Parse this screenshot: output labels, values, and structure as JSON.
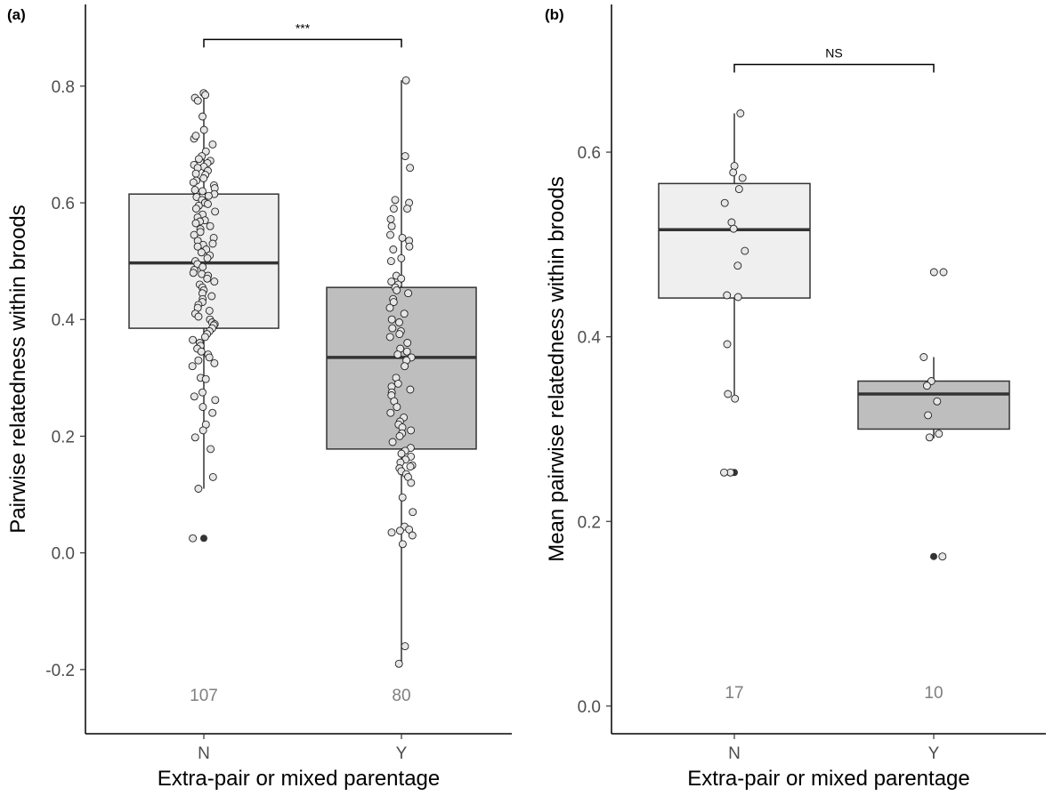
{
  "chart_data": [
    {
      "panel": "(a)",
      "type": "boxplot",
      "xlabel": "Extra-pair or mixed parentage",
      "ylabel": "Pairwise relatedness within broods",
      "categories": [
        "N",
        "Y"
      ],
      "y_ticks": [
        -0.2,
        0.0,
        0.2,
        0.4,
        0.6,
        0.8
      ],
      "y_tick_labels": [
        "-0.2",
        "0.0",
        "0.2",
        "0.4",
        "0.6",
        "0.8"
      ],
      "ylim": [
        -0.31,
        0.94
      ],
      "grid": false,
      "colors": {
        "N": "#efefef",
        "Y": "#bebebe"
      },
      "boxes": [
        {
          "category": "N",
          "whisker_low": 0.11,
          "q1": 0.385,
          "median": 0.497,
          "q3": 0.615,
          "whisker_high": 0.79,
          "outliers": [
            0.025
          ]
        },
        {
          "category": "Y",
          "whisker_low": -0.19,
          "q1": 0.178,
          "median": 0.335,
          "q3": 0.455,
          "whisker_high": 0.81,
          "outliers": []
        }
      ],
      "points": [
        {
          "category": "N",
          "values": [
            0.788,
            0.785,
            0.78,
            0.775,
            0.748,
            0.725,
            0.71,
            0.7,
            0.688,
            0.68,
            0.675,
            0.672,
            0.668,
            0.665,
            0.662,
            0.66,
            0.655,
            0.65,
            0.648,
            0.642,
            0.638,
            0.635,
            0.63,
            0.625,
            0.622,
            0.62,
            0.615,
            0.61,
            0.605,
            0.6,
            0.598,
            0.595,
            0.59,
            0.585,
            0.58,
            0.575,
            0.57,
            0.568,
            0.565,
            0.56,
            0.555,
            0.55,
            0.545,
            0.54,
            0.535,
            0.53,
            0.528,
            0.525,
            0.52,
            0.515,
            0.51,
            0.505,
            0.5,
            0.495,
            0.49,
            0.485,
            0.48,
            0.478,
            0.475,
            0.47,
            0.465,
            0.46,
            0.455,
            0.45,
            0.445,
            0.44,
            0.435,
            0.43,
            0.425,
            0.42,
            0.415,
            0.41,
            0.405,
            0.4,
            0.395,
            0.392,
            0.39,
            0.385,
            0.38,
            0.375,
            0.37,
            0.365,
            0.36,
            0.355,
            0.35,
            0.345,
            0.34,
            0.335,
            0.33,
            0.325,
            0.32,
            0.3,
            0.298,
            0.275,
            0.268,
            0.262,
            0.25,
            0.24,
            0.22,
            0.21,
            0.198,
            0.178,
            0.13,
            0.11,
            0.025,
            0.715,
            0.612
          ]
        },
        {
          "category": "Y",
          "values": [
            0.81,
            0.68,
            0.66,
            0.605,
            0.6,
            0.59,
            0.572,
            0.56,
            0.545,
            0.54,
            0.535,
            0.525,
            0.52,
            0.505,
            0.5,
            0.475,
            0.47,
            0.465,
            0.46,
            0.455,
            0.45,
            0.445,
            0.435,
            0.43,
            0.42,
            0.41,
            0.4,
            0.395,
            0.385,
            0.38,
            0.375,
            0.37,
            0.36,
            0.35,
            0.345,
            0.34,
            0.335,
            0.33,
            0.32,
            0.3,
            0.29,
            0.285,
            0.28,
            0.275,
            0.27,
            0.26,
            0.25,
            0.24,
            0.232,
            0.225,
            0.22,
            0.215,
            0.21,
            0.205,
            0.2,
            0.19,
            0.18,
            0.175,
            0.17,
            0.165,
            0.16,
            0.155,
            0.15,
            0.148,
            0.145,
            0.14,
            0.135,
            0.13,
            0.12,
            0.095,
            0.07,
            0.045,
            0.04,
            0.038,
            0.035,
            0.03,
            0.015,
            -0.16,
            -0.19,
            0.59
          ]
        }
      ],
      "counts": [
        {
          "category": "N",
          "label": "107"
        },
        {
          "category": "Y",
          "label": "80"
        }
      ],
      "significance": {
        "label": "***",
        "y": 0.88
      }
    },
    {
      "panel": "(b)",
      "type": "boxplot",
      "xlabel": "Extra-pair or mixed parentage",
      "ylabel": "Mean pairwise relatedness within broods",
      "categories": [
        "N",
        "Y"
      ],
      "y_ticks": [
        0.0,
        0.2,
        0.4,
        0.6
      ],
      "y_tick_labels": [
        "0.0",
        "0.2",
        "0.4",
        "0.6"
      ],
      "ylim": [
        -0.03,
        0.76
      ],
      "grid": false,
      "colors": {
        "N": "#efefef",
        "Y": "#bebebe"
      },
      "boxes": [
        {
          "category": "N",
          "whisker_low": 0.332,
          "q1": 0.442,
          "median": 0.516,
          "q3": 0.566,
          "whisker_high": 0.642,
          "outliers": [
            0.253
          ]
        },
        {
          "category": "Y",
          "whisker_low": 0.29,
          "q1": 0.3,
          "median": 0.338,
          "q3": 0.352,
          "whisker_high": 0.378,
          "outliers": [
            0.47,
            0.162
          ]
        }
      ],
      "points": [
        {
          "category": "N",
          "values": [
            0.642,
            0.585,
            0.578,
            0.572,
            0.56,
            0.545,
            0.524,
            0.517,
            0.493,
            0.477,
            0.445,
            0.443,
            0.392,
            0.338,
            0.333,
            0.253,
            0.253
          ]
        },
        {
          "category": "Y",
          "values": [
            0.47,
            0.47,
            0.378,
            0.352,
            0.347,
            0.33,
            0.315,
            0.295,
            0.291,
            0.162
          ]
        }
      ],
      "counts": [
        {
          "category": "N",
          "label": "17"
        },
        {
          "category": "Y",
          "label": "10"
        }
      ],
      "significance": {
        "label": "NS",
        "y": 0.695
      }
    }
  ]
}
